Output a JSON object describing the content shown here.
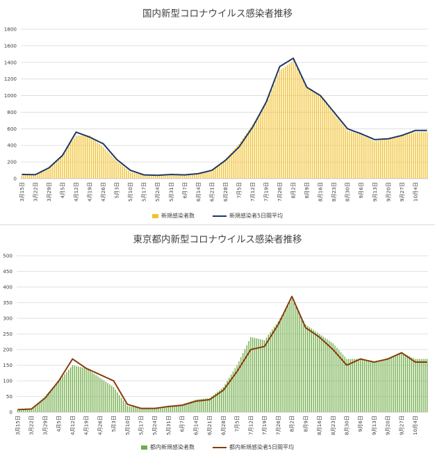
{
  "chart_data": [
    {
      "type": "bar",
      "title": "国内新型コロナウイルス感染者推移",
      "ylim": [
        0,
        1800
      ],
      "yticks": [
        0,
        200,
        400,
        600,
        800,
        1000,
        1200,
        1400,
        1600,
        1800
      ],
      "x_tick_labels": [
        "3月15日",
        "3月22日",
        "3月29日",
        "4月5日",
        "4月12日",
        "4月19日",
        "4月26日",
        "5月3日",
        "5月10日",
        "5月17日",
        "5月24日",
        "5月31日",
        "6月7日",
        "6月14日",
        "6月21日",
        "6月28日",
        "7月5日",
        "7月12日",
        "7月19日",
        "7月26日",
        "8月2日",
        "8月9日",
        "8月16日",
        "8月23日",
        "8月30日",
        "9月6日",
        "9月13日",
        "9月20日",
        "9月27日",
        "10月4日"
      ],
      "grid": true,
      "legend_position": "bottom",
      "colors": {
        "bars": "#f2c12e",
        "line": "#1f3864"
      },
      "series": [
        {
          "name": "新規感染者数",
          "kind": "bar",
          "weekly_values": [
            40,
            45,
            120,
            300,
            520,
            520,
            380,
            210,
            80,
            40,
            35,
            45,
            40,
            55,
            90,
            230,
            420,
            650,
            900,
            1300,
            1420,
            1100,
            1000,
            780,
            580,
            530,
            450,
            480,
            520,
            560
          ]
        },
        {
          "name": "新規感染者5日間平均",
          "kind": "line",
          "weekly_values": [
            50,
            48,
            130,
            280,
            560,
            500,
            420,
            230,
            100,
            45,
            40,
            50,
            45,
            60,
            100,
            220,
            380,
            620,
            920,
            1350,
            1450,
            1100,
            1000,
            800,
            600,
            540,
            470,
            480,
            520,
            580
          ]
        }
      ]
    },
    {
      "type": "bar",
      "title": "東京都内新型コロナウイルス感染者推移",
      "ylim": [
        0,
        500
      ],
      "yticks": [
        0,
        50,
        100,
        150,
        200,
        250,
        300,
        350,
        400,
        450,
        500
      ],
      "x_tick_labels": [
        "3月15日",
        "3月22日",
        "3月29日",
        "4月5日",
        "4月12日",
        "4月19日",
        "4月26日",
        "5月3日",
        "5月10日",
        "5月17日",
        "5月24日",
        "5月31日",
        "6月7日",
        "6月14日",
        "6月21日",
        "6月28日",
        "7月5日",
        "7月12日",
        "7月19日",
        "7月26日",
        "8月2日",
        "8月9日",
        "8月16日",
        "8月23日",
        "8月30日",
        "9月6日",
        "9月13日",
        "9月20日",
        "9月27日",
        "10月4日"
      ],
      "grid": true,
      "legend_position": "bottom",
      "colors": {
        "bars": "#70ad47",
        "line": "#843c0c"
      },
      "series": [
        {
          "name": "都内新規感染者数",
          "kind": "bar",
          "weekly_values": [
            8,
            10,
            50,
            100,
            150,
            140,
            110,
            80,
            20,
            12,
            12,
            20,
            25,
            40,
            45,
            80,
            150,
            240,
            230,
            290,
            360,
            280,
            250,
            220,
            170,
            170,
            160,
            170,
            190,
            170
          ]
        },
        {
          "name": "都内新規感染者5日間平均",
          "kind": "line",
          "weekly_values": [
            8,
            10,
            45,
            100,
            170,
            140,
            120,
            100,
            25,
            12,
            12,
            18,
            22,
            35,
            40,
            70,
            130,
            200,
            210,
            280,
            370,
            270,
            240,
            200,
            150,
            170,
            160,
            170,
            190,
            160
          ]
        }
      ]
    }
  ]
}
